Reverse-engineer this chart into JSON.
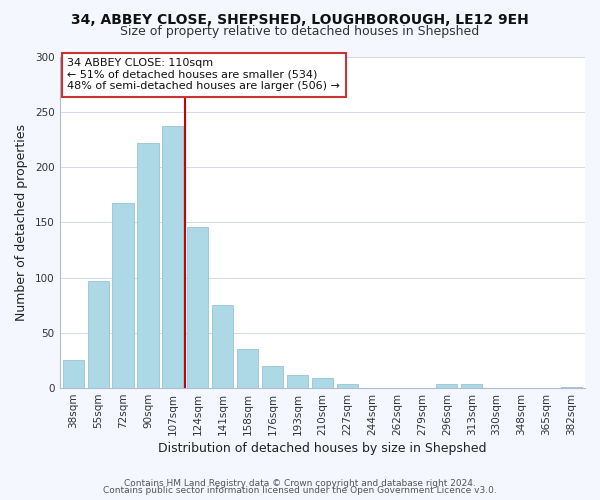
{
  "title1": "34, ABBEY CLOSE, SHEPSHED, LOUGHBOROUGH, LE12 9EH",
  "title2": "Size of property relative to detached houses in Shepshed",
  "xlabel": "Distribution of detached houses by size in Shepshed",
  "ylabel": "Number of detached properties",
  "categories": [
    "38sqm",
    "55sqm",
    "72sqm",
    "90sqm",
    "107sqm",
    "124sqm",
    "141sqm",
    "158sqm",
    "176sqm",
    "193sqm",
    "210sqm",
    "227sqm",
    "244sqm",
    "262sqm",
    "279sqm",
    "296sqm",
    "313sqm",
    "330sqm",
    "348sqm",
    "365sqm",
    "382sqm"
  ],
  "values": [
    25,
    97,
    167,
    222,
    237,
    146,
    75,
    35,
    20,
    12,
    9,
    4,
    0,
    0,
    0,
    4,
    4,
    0,
    0,
    0,
    1
  ],
  "bar_color": "#add8e6",
  "red_line_x": 4.5,
  "ylim": [
    0,
    300
  ],
  "yticks": [
    0,
    50,
    100,
    150,
    200,
    250,
    300
  ],
  "annotation_title": "34 ABBEY CLOSE: 110sqm",
  "annotation_line1": "← 51% of detached houses are smaller (534)",
  "annotation_line2": "48% of semi-detached houses are larger (506) →",
  "footer1": "Contains HM Land Registry data © Crown copyright and database right 2024.",
  "footer2": "Contains public sector information licensed under the Open Government Licence v3.0.",
  "bg_color": "#f5f7ff",
  "plot_bg_color": "#ffffff",
  "grid_color": "#d0daea",
  "spine_color": "#b0bcd0",
  "title1_fontsize": 10,
  "title2_fontsize": 9,
  "xlabel_fontsize": 9,
  "ylabel_fontsize": 9,
  "tick_fontsize": 7.5,
  "ann_fontsize": 8.0,
  "footer_fontsize": 6.5
}
